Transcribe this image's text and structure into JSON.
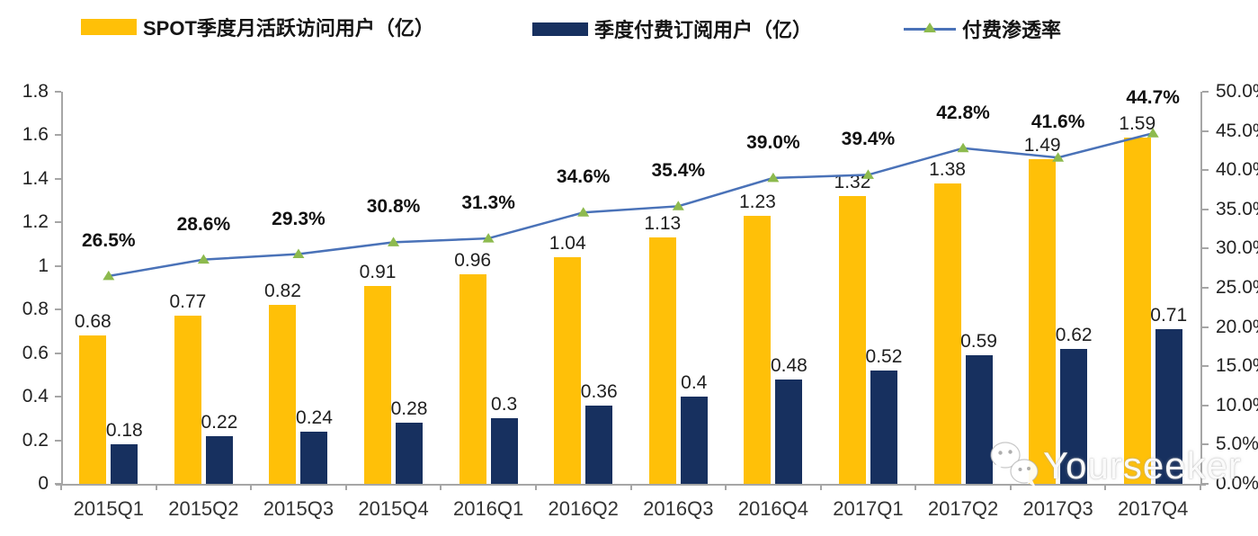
{
  "legend": {
    "items": [
      {
        "label": "SPOT季度月活跃访问用户（亿）",
        "swatch": "bar",
        "color": "#FFC008"
      },
      {
        "label": "季度付费订阅用户（亿）",
        "swatch": "bar",
        "color": "#17305F"
      },
      {
        "label": "付费渗透率",
        "swatch": "line-marker",
        "color": "#4A72B8",
        "marker_color": "#8DBA4E"
      }
    ]
  },
  "watermark": {
    "text": "Yourseeker",
    "icon": "wechat-logo-icon"
  },
  "chart_data": {
    "type": "combo",
    "legend_position": "top",
    "grid": false,
    "categories": [
      "2015Q1",
      "2015Q2",
      "2015Q3",
      "2015Q4",
      "2016Q1",
      "2016Q2",
      "2016Q3",
      "2016Q4",
      "2017Q1",
      "2017Q2",
      "2017Q3",
      "2017Q4"
    ],
    "series": [
      {
        "name": "SPOT季度月活跃访问用户（亿）",
        "type": "bar",
        "axis": "left",
        "color": "#FFC008",
        "values": [
          0.68,
          0.77,
          0.82,
          0.91,
          0.96,
          1.04,
          1.13,
          1.23,
          1.32,
          1.38,
          1.49,
          1.59
        ],
        "labels": [
          "0.68",
          "0.77",
          "0.82",
          "0.91",
          "0.96",
          "1.04",
          "1.13",
          "1.23",
          "1.32",
          "1.38",
          "1.49",
          "1.59"
        ]
      },
      {
        "name": "季度付费订阅用户（亿）",
        "type": "bar",
        "axis": "left",
        "color": "#17305F",
        "values": [
          0.18,
          0.22,
          0.24,
          0.28,
          0.3,
          0.36,
          0.4,
          0.48,
          0.52,
          0.59,
          0.62,
          0.71
        ],
        "labels": [
          "0.18",
          "0.22",
          "0.24",
          "0.28",
          "0.3",
          "0.36",
          "0.4",
          "0.48",
          "0.52",
          "0.59",
          "0.62",
          "0.71"
        ]
      },
      {
        "name": "付费渗透率",
        "type": "line",
        "axis": "right",
        "color": "#4A72B8",
        "marker": "triangle",
        "marker_color": "#8DBA4E",
        "values": [
          26.5,
          28.6,
          29.3,
          30.8,
          31.3,
          34.6,
          35.4,
          39.0,
          39.4,
          42.8,
          41.6,
          44.7
        ],
        "labels": [
          "26.5%",
          "28.6%",
          "29.3%",
          "30.8%",
          "31.3%",
          "34.6%",
          "35.4%",
          "39.0%",
          "39.4%",
          "42.8%",
          "41.6%",
          "44.7%"
        ]
      }
    ],
    "left_axis": {
      "min": 0,
      "max": 1.8,
      "step": 0.2,
      "tick_labels": [
        "0",
        "0.2",
        "0.4",
        "0.6",
        "0.8",
        "1",
        "1.2",
        "1.4",
        "1.6",
        "1.8"
      ]
    },
    "right_axis": {
      "min": 0,
      "max": 50,
      "step": 5,
      "tick_labels": [
        "0.0%",
        "5.0%",
        "10.0%",
        "15.0%",
        "20.0%",
        "25.0%",
        "30.0%",
        "35.0%",
        "40.0%",
        "45.0%",
        "50.0%"
      ]
    }
  }
}
